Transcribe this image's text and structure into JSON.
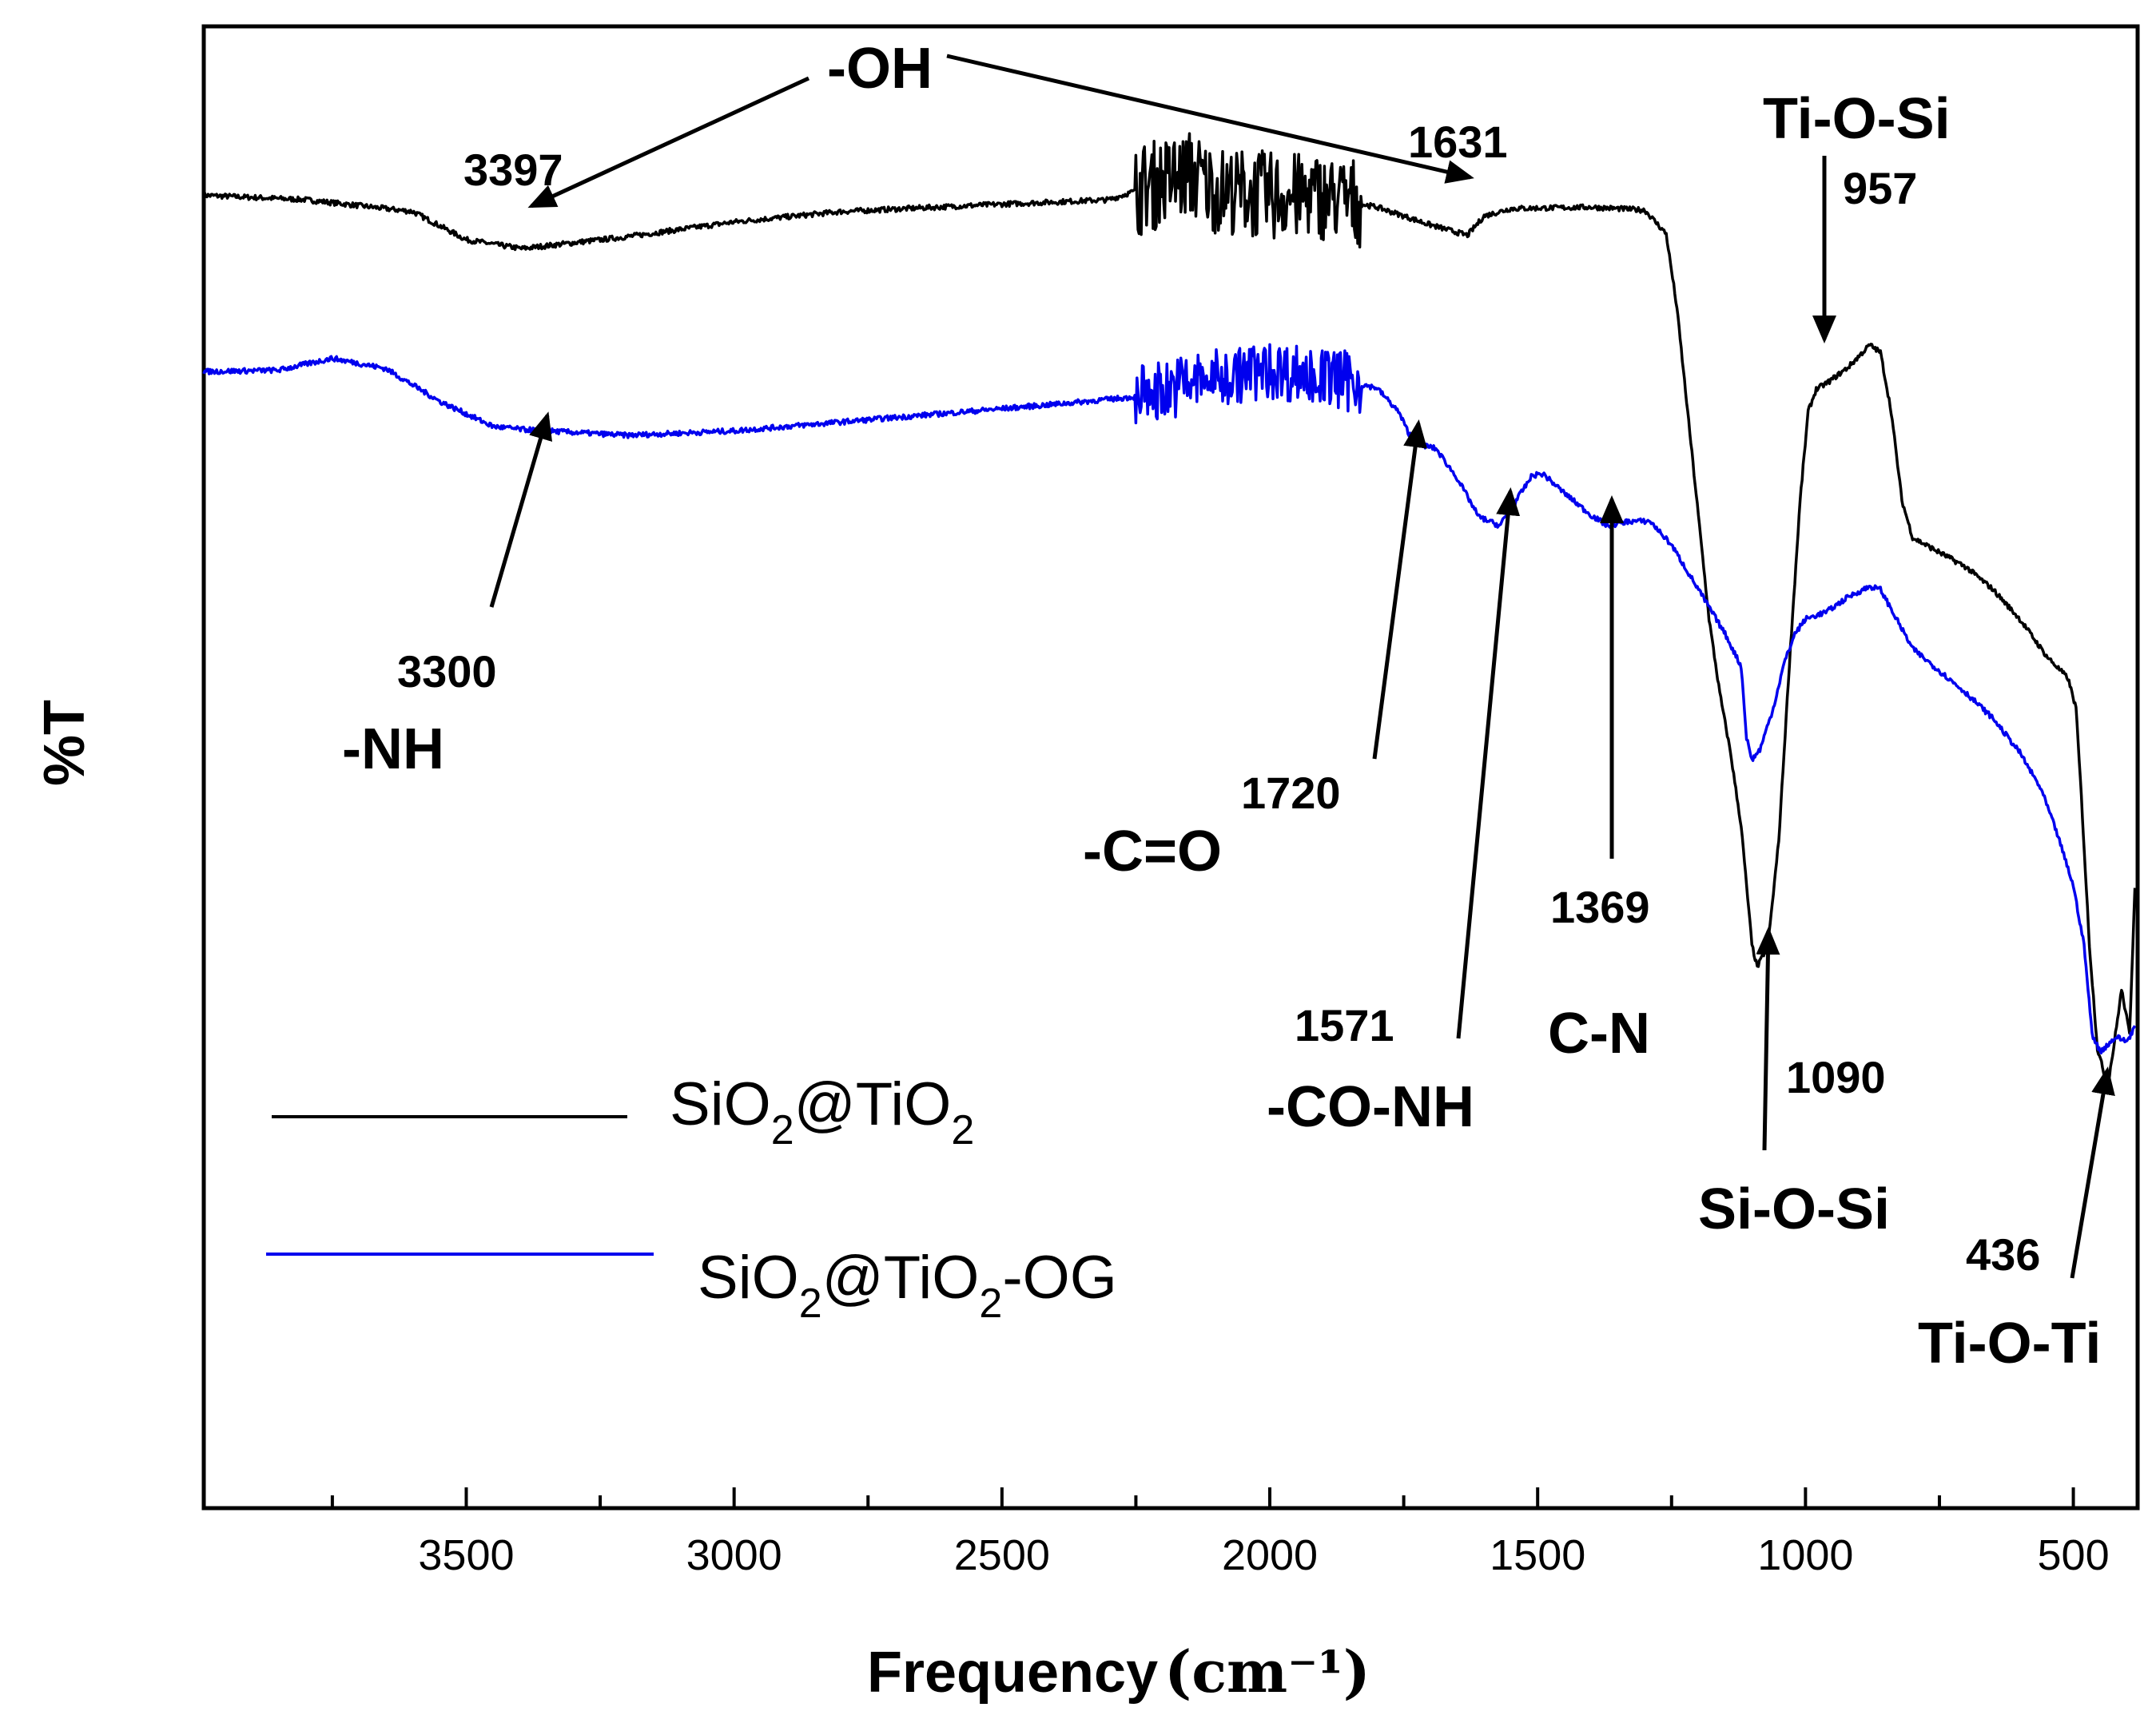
{
  "chart_data": {
    "type": "line",
    "title": "",
    "xlabel": "Frequency",
    "xlabel_unit": "(cm⁻¹)",
    "ylabel": "%T",
    "xlim": [
      3990,
      380
    ],
    "x_direction": "reversed",
    "y_ticks_shown": false,
    "grid": false,
    "x_ticks": [
      3500,
      3000,
      2500,
      2000,
      1500,
      1000,
      500
    ],
    "x_tick_labels": [
      "3500",
      "3000",
      "2500",
      "2000",
      "1500",
      "1000",
      "500"
    ],
    "x_minor_ticks": [
      3750,
      3250,
      2750,
      2250,
      1750,
      1250,
      750
    ],
    "legend": [
      {
        "name_parts": [
          "SiO",
          "2",
          "@TiO",
          "2",
          ""
        ],
        "color": "#000000"
      },
      {
        "name_parts": [
          "SiO",
          "2",
          "@TiO",
          "2",
          "-OG"
        ],
        "color": "#0000ee"
      }
    ],
    "series": [
      {
        "name": "SiO2@TiO2",
        "color": "#000000",
        "noise": {
          "range": [
            2250,
            1830
          ],
          "amplitude": 3.0
        },
        "points": [
          [
            3990,
            88.6
          ],
          [
            3800,
            88.3
          ],
          [
            3600,
            87.5
          ],
          [
            3500,
            85.6
          ],
          [
            3397,
            85.0
          ],
          [
            3200,
            85.8
          ],
          [
            3000,
            86.8
          ],
          [
            2800,
            87.5
          ],
          [
            2500,
            88.0
          ],
          [
            2300,
            88.3
          ],
          [
            2200,
            89.5
          ],
          [
            2150,
            90.0
          ],
          [
            2100,
            89.0
          ],
          [
            2000,
            88.6
          ],
          [
            1900,
            88.5
          ],
          [
            1800,
            87.8
          ],
          [
            1700,
            86.6
          ],
          [
            1631,
            85.9
          ],
          [
            1600,
            87.2
          ],
          [
            1550,
            87.7
          ],
          [
            1400,
            87.8
          ],
          [
            1300,
            87.6
          ],
          [
            1260,
            86.0
          ],
          [
            1240,
            81.0
          ],
          [
            1220,
            74.0
          ],
          [
            1200,
            67.0
          ],
          [
            1180,
            60.0
          ],
          [
            1160,
            55.0
          ],
          [
            1140,
            51.0
          ],
          [
            1120,
            46.0
          ],
          [
            1100,
            38.0
          ],
          [
            1090,
            36.5
          ],
          [
            1070,
            38.0
          ],
          [
            1050,
            45.0
          ],
          [
            1030,
            57.0
          ],
          [
            1010,
            68.0
          ],
          [
            995,
            74.0
          ],
          [
            980,
            75.5
          ],
          [
            957,
            76.0
          ],
          [
            920,
            77.0
          ],
          [
            880,
            78.5
          ],
          [
            860,
            78.0
          ],
          [
            840,
            74.0
          ],
          [
            820,
            68.0
          ],
          [
            800,
            65.5
          ],
          [
            750,
            64.5
          ],
          [
            700,
            63.5
          ],
          [
            650,
            62.0
          ],
          [
            600,
            60.0
          ],
          [
            550,
            57.5
          ],
          [
            510,
            56.0
          ],
          [
            495,
            54.0
          ],
          [
            485,
            48.0
          ],
          [
            470,
            38.0
          ],
          [
            455,
            31.0
          ],
          [
            440,
            29.0
          ],
          [
            436,
            28.5
          ],
          [
            425,
            31.0
          ],
          [
            410,
            35.0
          ],
          [
            395,
            32.0
          ],
          [
            385,
            42.0
          ]
        ]
      },
      {
        "name": "SiO2@TiO2-OG",
        "color": "#0000ee",
        "noise": {
          "range": [
            2250,
            1830
          ],
          "amplitude": 2.0
        },
        "points": [
          [
            3990,
            76.7
          ],
          [
            3850,
            76.8
          ],
          [
            3750,
            77.6
          ],
          [
            3650,
            76.9
          ],
          [
            3550,
            74.7
          ],
          [
            3450,
            73.0
          ],
          [
            3397,
            72.8
          ],
          [
            3300,
            72.6
          ],
          [
            3200,
            72.4
          ],
          [
            3000,
            72.7
          ],
          [
            2800,
            73.3
          ],
          [
            2600,
            73.9
          ],
          [
            2400,
            74.5
          ],
          [
            2250,
            75.0
          ],
          [
            2150,
            76.0
          ],
          [
            2000,
            76.8
          ],
          [
            1900,
            76.4
          ],
          [
            1800,
            75.6
          ],
          [
            1760,
            74.0
          ],
          [
            1740,
            72.5
          ],
          [
            1720,
            71.8
          ],
          [
            1690,
            71.5
          ],
          [
            1650,
            69.5
          ],
          [
            1610,
            66.9
          ],
          [
            1571,
            66.3
          ],
          [
            1540,
            68.0
          ],
          [
            1510,
            69.7
          ],
          [
            1490,
            69.8
          ],
          [
            1450,
            68.5
          ],
          [
            1400,
            67.0
          ],
          [
            1369,
            66.3
          ],
          [
            1330,
            66.6
          ],
          [
            1290,
            66.6
          ],
          [
            1250,
            65.0
          ],
          [
            1200,
            62.0
          ],
          [
            1150,
            59.0
          ],
          [
            1120,
            56.8
          ],
          [
            1110,
            52.0
          ],
          [
            1100,
            50.5
          ],
          [
            1085,
            51.2
          ],
          [
            1060,
            54.0
          ],
          [
            1040,
            57.0
          ],
          [
            1020,
            59.0
          ],
          [
            1000,
            60.0
          ],
          [
            960,
            60.5
          ],
          [
            920,
            61.5
          ],
          [
            880,
            62.2
          ],
          [
            860,
            62.0
          ],
          [
            830,
            60.0
          ],
          [
            800,
            58.0
          ],
          [
            750,
            56.5
          ],
          [
            700,
            55.0
          ],
          [
            650,
            53.3
          ],
          [
            600,
            51.0
          ],
          [
            560,
            48.5
          ],
          [
            530,
            45.5
          ],
          [
            500,
            42.0
          ],
          [
            480,
            38.0
          ],
          [
            465,
            32.0
          ],
          [
            450,
            30.8
          ],
          [
            420,
            31.8
          ],
          [
            400,
            31.5
          ],
          [
            385,
            32.5
          ]
        ]
      }
    ],
    "annotations": {
      "oh": {
        "label": "-OH"
      },
      "n3397": {
        "label": "3397"
      },
      "n1631": {
        "label": "1631"
      },
      "tiosi": {
        "label": "Ti-O-Si"
      },
      "n957": {
        "label": "957"
      },
      "n3300": {
        "label": "3300"
      },
      "nh": {
        "label": "-NH"
      },
      "n1720": {
        "label": "1720"
      },
      "co": {
        "label": "-C=O"
      },
      "n1369": {
        "label": "1369"
      },
      "cn": {
        "label": "C-N"
      },
      "n1571": {
        "label": "1571"
      },
      "conh": {
        "label": "-CO-NH"
      },
      "n1090": {
        "label": "1090"
      },
      "siosi": {
        "label": "Si-O-Si"
      },
      "n436": {
        "label": "436"
      },
      "tioti": {
        "label": "Ti-O-Ti"
      }
    }
  }
}
